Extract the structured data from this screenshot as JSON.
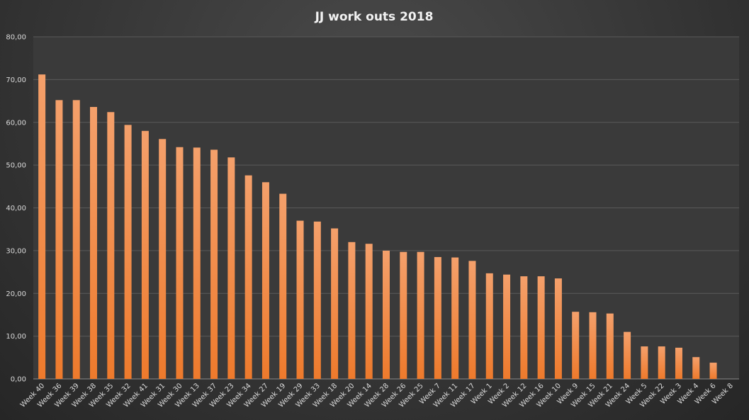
{
  "chart_data": {
    "type": "bar",
    "title": "JJ work outs  2018",
    "xlabel": "",
    "ylabel": "",
    "ylim": [
      0,
      80
    ],
    "yticks": [
      "0,00",
      "10,00",
      "20,00",
      "30,00",
      "40,00",
      "50,00",
      "60,00",
      "70,00",
      "80,00"
    ],
    "grid": true,
    "categories": [
      "Week 40",
      "Week 36",
      "Week 39",
      "Week 38",
      "Week 35",
      "Week 32",
      "Week 41",
      "Week 31",
      "Week 30",
      "Week 13",
      "Week 37",
      "Week 23",
      "Week 34",
      "Week 27",
      "Week 19",
      "Week 29",
      "Week 33",
      "Week 18",
      "Week 20",
      "Week 14",
      "Week 28",
      "Week 26",
      "Week 25",
      "Week 7",
      "Week 11",
      "Week 17",
      "Week 1",
      "Week 2",
      "Week 12",
      "Week 16",
      "Week 10",
      "Week 9",
      "Week 15",
      "Week 21",
      "Week 24",
      "Week 5",
      "Week 22",
      "Week 3",
      "Week 4",
      "Week 6",
      "Week 8"
    ],
    "values": [
      71.2,
      65.2,
      65.2,
      63.6,
      62.4,
      59.4,
      58.0,
      56.1,
      54.2,
      54.1,
      53.6,
      51.8,
      47.6,
      46.0,
      43.3,
      37.0,
      36.8,
      35.2,
      32.0,
      31.6,
      30.0,
      29.7,
      29.7,
      28.5,
      28.4,
      27.6,
      24.7,
      24.4,
      24.0,
      24.0,
      23.5,
      15.7,
      15.6,
      15.3,
      11.0,
      7.6,
      7.6,
      7.3,
      5.1,
      3.8,
      0.0
    ]
  },
  "colors": {
    "bar_top": "#f4a06b",
    "bar_bottom": "#ee7a2c",
    "grid": "#5a5a5a",
    "axis": "#8a8a8a",
    "text": "#d9d9d9",
    "title": "#f2f2f2"
  }
}
